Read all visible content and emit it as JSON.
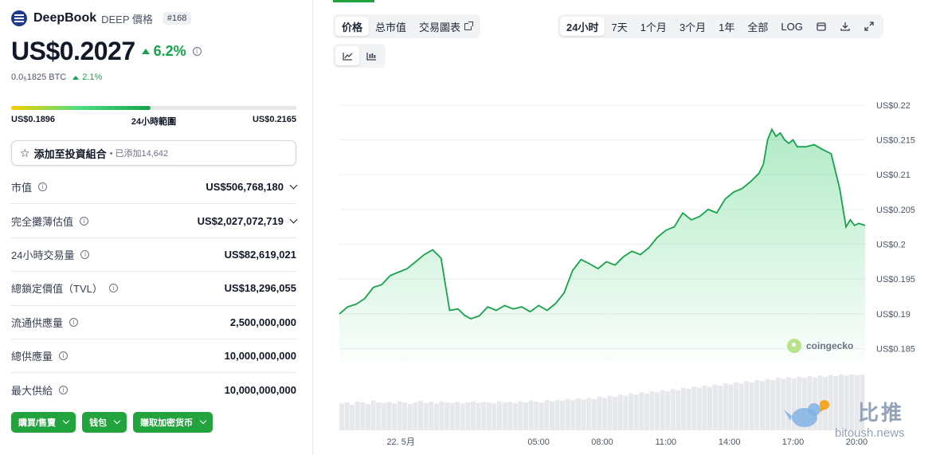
{
  "coin": {
    "name": "DeepBook",
    "symbol_label": "DEEP 價格",
    "rank": "#168",
    "price": "US$0.2027",
    "change_24h": "6.2%",
    "btc_price": "0.0₅1825 BTC",
    "btc_change": "2.1%"
  },
  "range": {
    "low": "US$0.1896",
    "label": "24小時範圍",
    "high": "US$0.2165",
    "position_fraction": 0.49
  },
  "portfolio": {
    "label": "添加至投資組合",
    "added": "• 已添加14,642"
  },
  "stats": [
    {
      "label": "市值",
      "value": "US$506,768,180",
      "expandable": true
    },
    {
      "label": "完全攤薄估值",
      "value": "US$2,027,072,719",
      "expandable": true
    },
    {
      "label": "24小時交易量",
      "value": "US$82,619,021",
      "expandable": false
    },
    {
      "label": "總鎖定價值（TVL）",
      "value": "US$18,296,055",
      "expandable": false
    },
    {
      "label": "流通供應量",
      "value": "2,500,000,000",
      "expandable": false
    },
    {
      "label": "總供應量",
      "value": "10,000,000,000",
      "expandable": false
    },
    {
      "label": "最大供給",
      "value": "10,000,000,000",
      "expandable": false
    }
  ],
  "actions": [
    "購買/售賣",
    "钱包",
    "賺取加密货币"
  ],
  "chart_tabs": {
    "type_tabs": [
      "价格",
      "总市值",
      "交易圖表"
    ],
    "range_tabs": [
      "24小时",
      "7天",
      "1个月",
      "3个月",
      "1年",
      "全部",
      "LOG"
    ],
    "active_type": "价格",
    "active_range": "24小时",
    "icons": [
      "calendar-icon",
      "download-icon",
      "fullscreen-icon"
    ],
    "view_icons": [
      "line-chart-icon",
      "candlestick-icon"
    ]
  },
  "chart_data": {
    "type": "area",
    "title": "",
    "xlabel": "",
    "ylabel": "",
    "y_tick_labels": [
      "US$0.22",
      "US$0.215",
      "US$0.21",
      "US$0.205",
      "US$0.2",
      "US$0.195",
      "US$0.19",
      "US$0.185"
    ],
    "y_ticks": [
      0.22,
      0.215,
      0.21,
      0.205,
      0.2,
      0.195,
      0.19,
      0.185
    ],
    "ylim": [
      0.183,
      0.2225
    ],
    "x_tick_labels": [
      "22. 5月",
      "05:00",
      "08:00",
      "11:00",
      "14:00",
      "17:00",
      "20:00"
    ],
    "x_ticks": [
      -1.5,
      5,
      8,
      11,
      14,
      17,
      20
    ],
    "xlim": [
      -4.4,
      20.4
    ],
    "grid": true,
    "color": "#16a34a",
    "watermark": "coingecko",
    "series": [
      {
        "x": [
          -4.4,
          -4.0,
          -3.6,
          -3.2,
          -2.8,
          -2.4,
          -2.0,
          -1.6,
          -1.2,
          -0.8,
          -0.4,
          0.0,
          0.4,
          0.8,
          1.2,
          1.5,
          1.8,
          2.2,
          2.6,
          3.0,
          3.4,
          3.8,
          4.2,
          4.6,
          5.0,
          5.4,
          5.8,
          6.2,
          6.6,
          7.0,
          7.4,
          7.8,
          8.2,
          8.6,
          9.0,
          9.4,
          9.8,
          10.2,
          10.6,
          11.0,
          11.4,
          11.8,
          12.2,
          12.6,
          13.0,
          13.4,
          13.8,
          14.2,
          14.6,
          15.0,
          15.4,
          15.6,
          15.8,
          16.0,
          16.2,
          16.4,
          16.6,
          16.8,
          17.0,
          17.2,
          17.6,
          18.0,
          18.4,
          18.8,
          19.2,
          19.5,
          19.7,
          19.9,
          20.1,
          20.4
        ],
        "y": [
          0.19,
          0.191,
          0.1914,
          0.1922,
          0.1938,
          0.1942,
          0.1955,
          0.196,
          0.1965,
          0.1975,
          0.1985,
          0.1992,
          0.198,
          0.1905,
          0.1907,
          0.1898,
          0.1893,
          0.1897,
          0.191,
          0.1905,
          0.1912,
          0.1907,
          0.191,
          0.1903,
          0.1912,
          0.1905,
          0.1915,
          0.193,
          0.1962,
          0.1978,
          0.1972,
          0.1965,
          0.1975,
          0.197,
          0.1982,
          0.199,
          0.1985,
          0.1995,
          0.201,
          0.202,
          0.2025,
          0.2045,
          0.2035,
          0.204,
          0.205,
          0.2045,
          0.2065,
          0.2075,
          0.208,
          0.209,
          0.2102,
          0.2115,
          0.215,
          0.2165,
          0.2155,
          0.216,
          0.215,
          0.2145,
          0.215,
          0.214,
          0.214,
          0.2143,
          0.2136,
          0.213,
          0.208,
          0.2025,
          0.2035,
          0.2027,
          0.203,
          0.2027
        ]
      }
    ],
    "volume": [
      0.48,
      0.5,
      0.46,
      0.52,
      0.5,
      0.47,
      0.53,
      0.5,
      0.49,
      0.51,
      0.48,
      0.52,
      0.5,
      0.47,
      0.5,
      0.53,
      0.49,
      0.51,
      0.48,
      0.52,
      0.5,
      0.49,
      0.51,
      0.48,
      0.5,
      0.52,
      0.49,
      0.51,
      0.5,
      0.48,
      0.52,
      0.5,
      0.51,
      0.49,
      0.52,
      0.5,
      0.53,
      0.51,
      0.5,
      0.54,
      0.52,
      0.55,
      0.53,
      0.56,
      0.54,
      0.57,
      0.55,
      0.58,
      0.56,
      0.6,
      0.58,
      0.62,
      0.6,
      0.64,
      0.62,
      0.66,
      0.64,
      0.68,
      0.66,
      0.7,
      0.68,
      0.72,
      0.7,
      0.74,
      0.72,
      0.76,
      0.74,
      0.78,
      0.76,
      0.8,
      0.78,
      0.82,
      0.8,
      0.84,
      0.82,
      0.86,
      0.84,
      0.88,
      0.86,
      0.9,
      0.88,
      0.92,
      0.9,
      0.94,
      0.92,
      0.95,
      0.93,
      0.96,
      0.94,
      0.97,
      0.95,
      0.98,
      0.96,
      0.99,
      0.97,
      1.0,
      0.98,
      1.0,
      0.99,
      1.0
    ]
  },
  "watermark": {
    "brand": "比推",
    "url": "bitoush.news"
  }
}
